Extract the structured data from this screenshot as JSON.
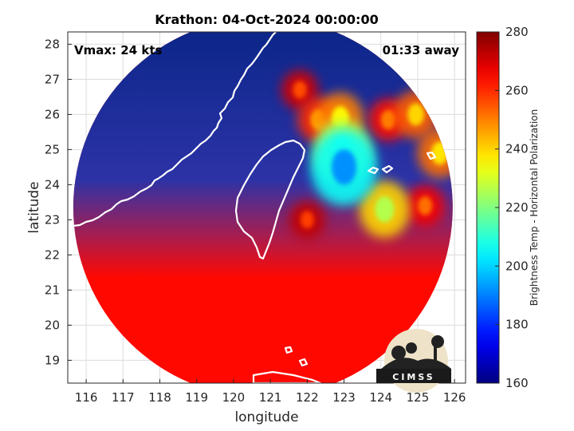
{
  "chart_data": {
    "type": "heatmap",
    "title": "Krathon: 04-Oct-2024 00:00:00",
    "xlabel": "longitude",
    "ylabel": "latitude",
    "xlim": [
      115.5,
      126.3
    ],
    "ylim": [
      18.35,
      28.35
    ],
    "xticks": [
      116,
      117,
      118,
      119,
      120,
      121,
      122,
      123,
      124,
      125,
      126
    ],
    "yticks": [
      19,
      20,
      21,
      22,
      23,
      24,
      25,
      26,
      27,
      28
    ],
    "grid": true,
    "colorbar": {
      "label": "Brightness Temp - Horizontal Polarization",
      "range": [
        160,
        280
      ],
      "ticks": [
        160,
        180,
        200,
        220,
        240,
        260,
        280
      ],
      "colormap": "jet"
    },
    "annotations": {
      "vmax": "Vmax: 24 kts",
      "time_away": "01:33 away"
    },
    "swath_center": [
      120.8,
      23.35
    ],
    "swath_radius_deg": 5.15,
    "background_value": 264,
    "features": [
      {
        "lon": 122.9,
        "lat": 25.9,
        "value": 236
      },
      {
        "lon": 123.0,
        "lat": 24.5,
        "value": 192
      },
      {
        "lon": 122.95,
        "lat": 24.95,
        "value": 214
      },
      {
        "lon": 124.1,
        "lat": 23.3,
        "value": 226
      },
      {
        "lon": 124.95,
        "lat": 26.0,
        "value": 240
      },
      {
        "lon": 125.6,
        "lat": 24.9,
        "value": 238
      },
      {
        "lon": 122.3,
        "lat": 25.85,
        "value": 246
      },
      {
        "lon": 124.2,
        "lat": 25.85,
        "value": 250
      },
      {
        "lon": 125.2,
        "lat": 23.4,
        "value": 252
      },
      {
        "lon": 122.0,
        "lat": 23.0,
        "value": 258
      },
      {
        "lon": 121.8,
        "lat": 26.7,
        "value": 256
      }
    ],
    "legend": "none"
  },
  "logo": {
    "text": "CIMSS"
  },
  "colors": {
    "ocean_low": "#1f47e6",
    "north_dark": "#0f2d9a",
    "coast": "#ffffff",
    "frame": "#000000"
  }
}
